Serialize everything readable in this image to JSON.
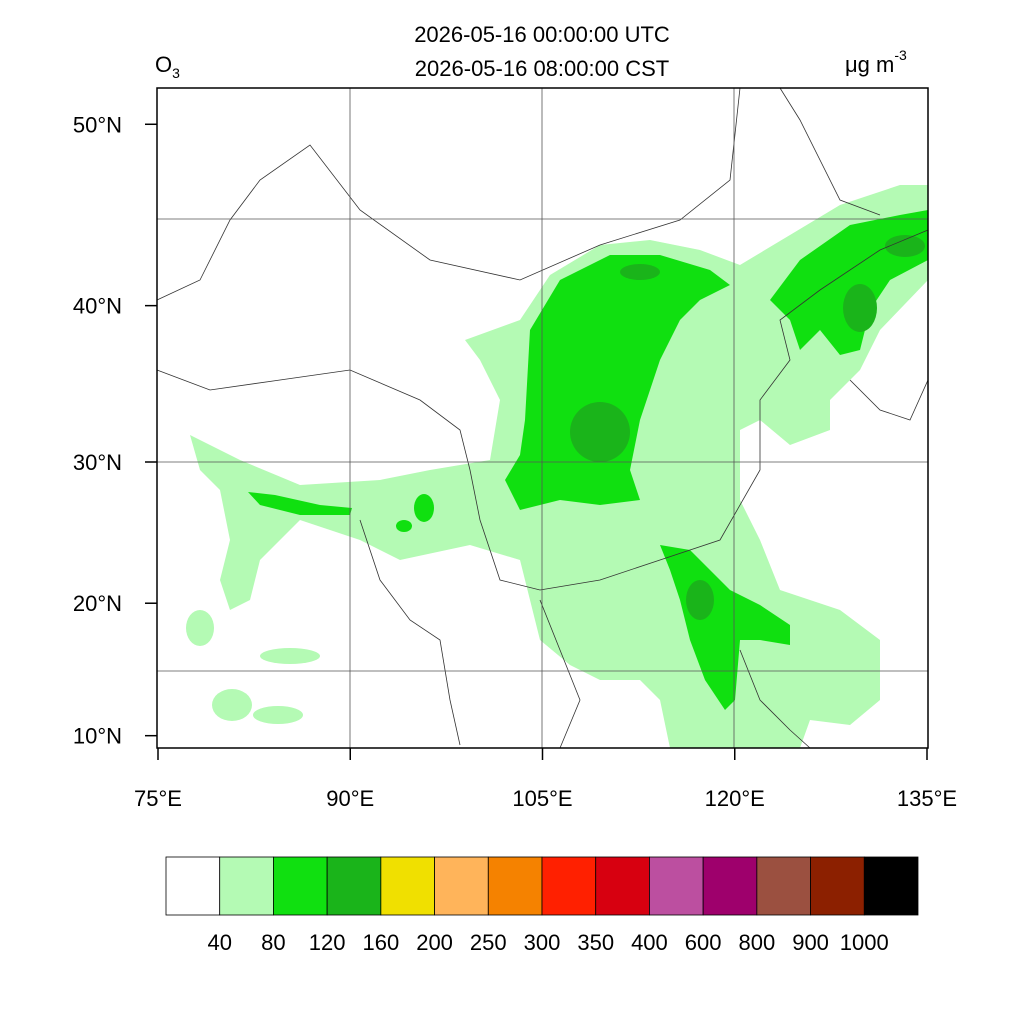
{
  "map": {
    "title_lines": [
      "2026-05-16 00:00:00 UTC",
      "2026-05-16 08:00:00 CST"
    ],
    "variable": {
      "symbol": "O",
      "subscript": "3"
    },
    "unit": {
      "text": "μg m",
      "superscript": "-3"
    },
    "lat_ticks": [
      {
        "value": 50,
        "label": "50°N"
      },
      {
        "value": 40,
        "label": "40°N"
      },
      {
        "value": 30,
        "label": "30°N"
      },
      {
        "value": 20,
        "label": "20°N"
      },
      {
        "value": 10,
        "label": "10°N"
      }
    ],
    "lon_ticks": [
      {
        "value": 75,
        "label": "75°E"
      },
      {
        "value": 90,
        "label": "90°E"
      },
      {
        "value": 105,
        "label": "105°E"
      },
      {
        "value": 120,
        "label": "120°E"
      },
      {
        "value": 135,
        "label": "135°E"
      }
    ],
    "colorbar": {
      "levels": [
        40,
        80,
        120,
        160,
        200,
        250,
        300,
        350,
        400,
        600,
        800,
        900,
        1000
      ],
      "colors": [
        "#ffffff",
        "#b4fab4",
        "#10e010",
        "#1ab41a",
        "#f0e000",
        "#ffb45a",
        "#f58200",
        "#ff2000",
        "#d70010",
        "#bc4fa0",
        "#9e006c",
        "#9b5040",
        "#8c2000",
        "#000000"
      ]
    }
  }
}
